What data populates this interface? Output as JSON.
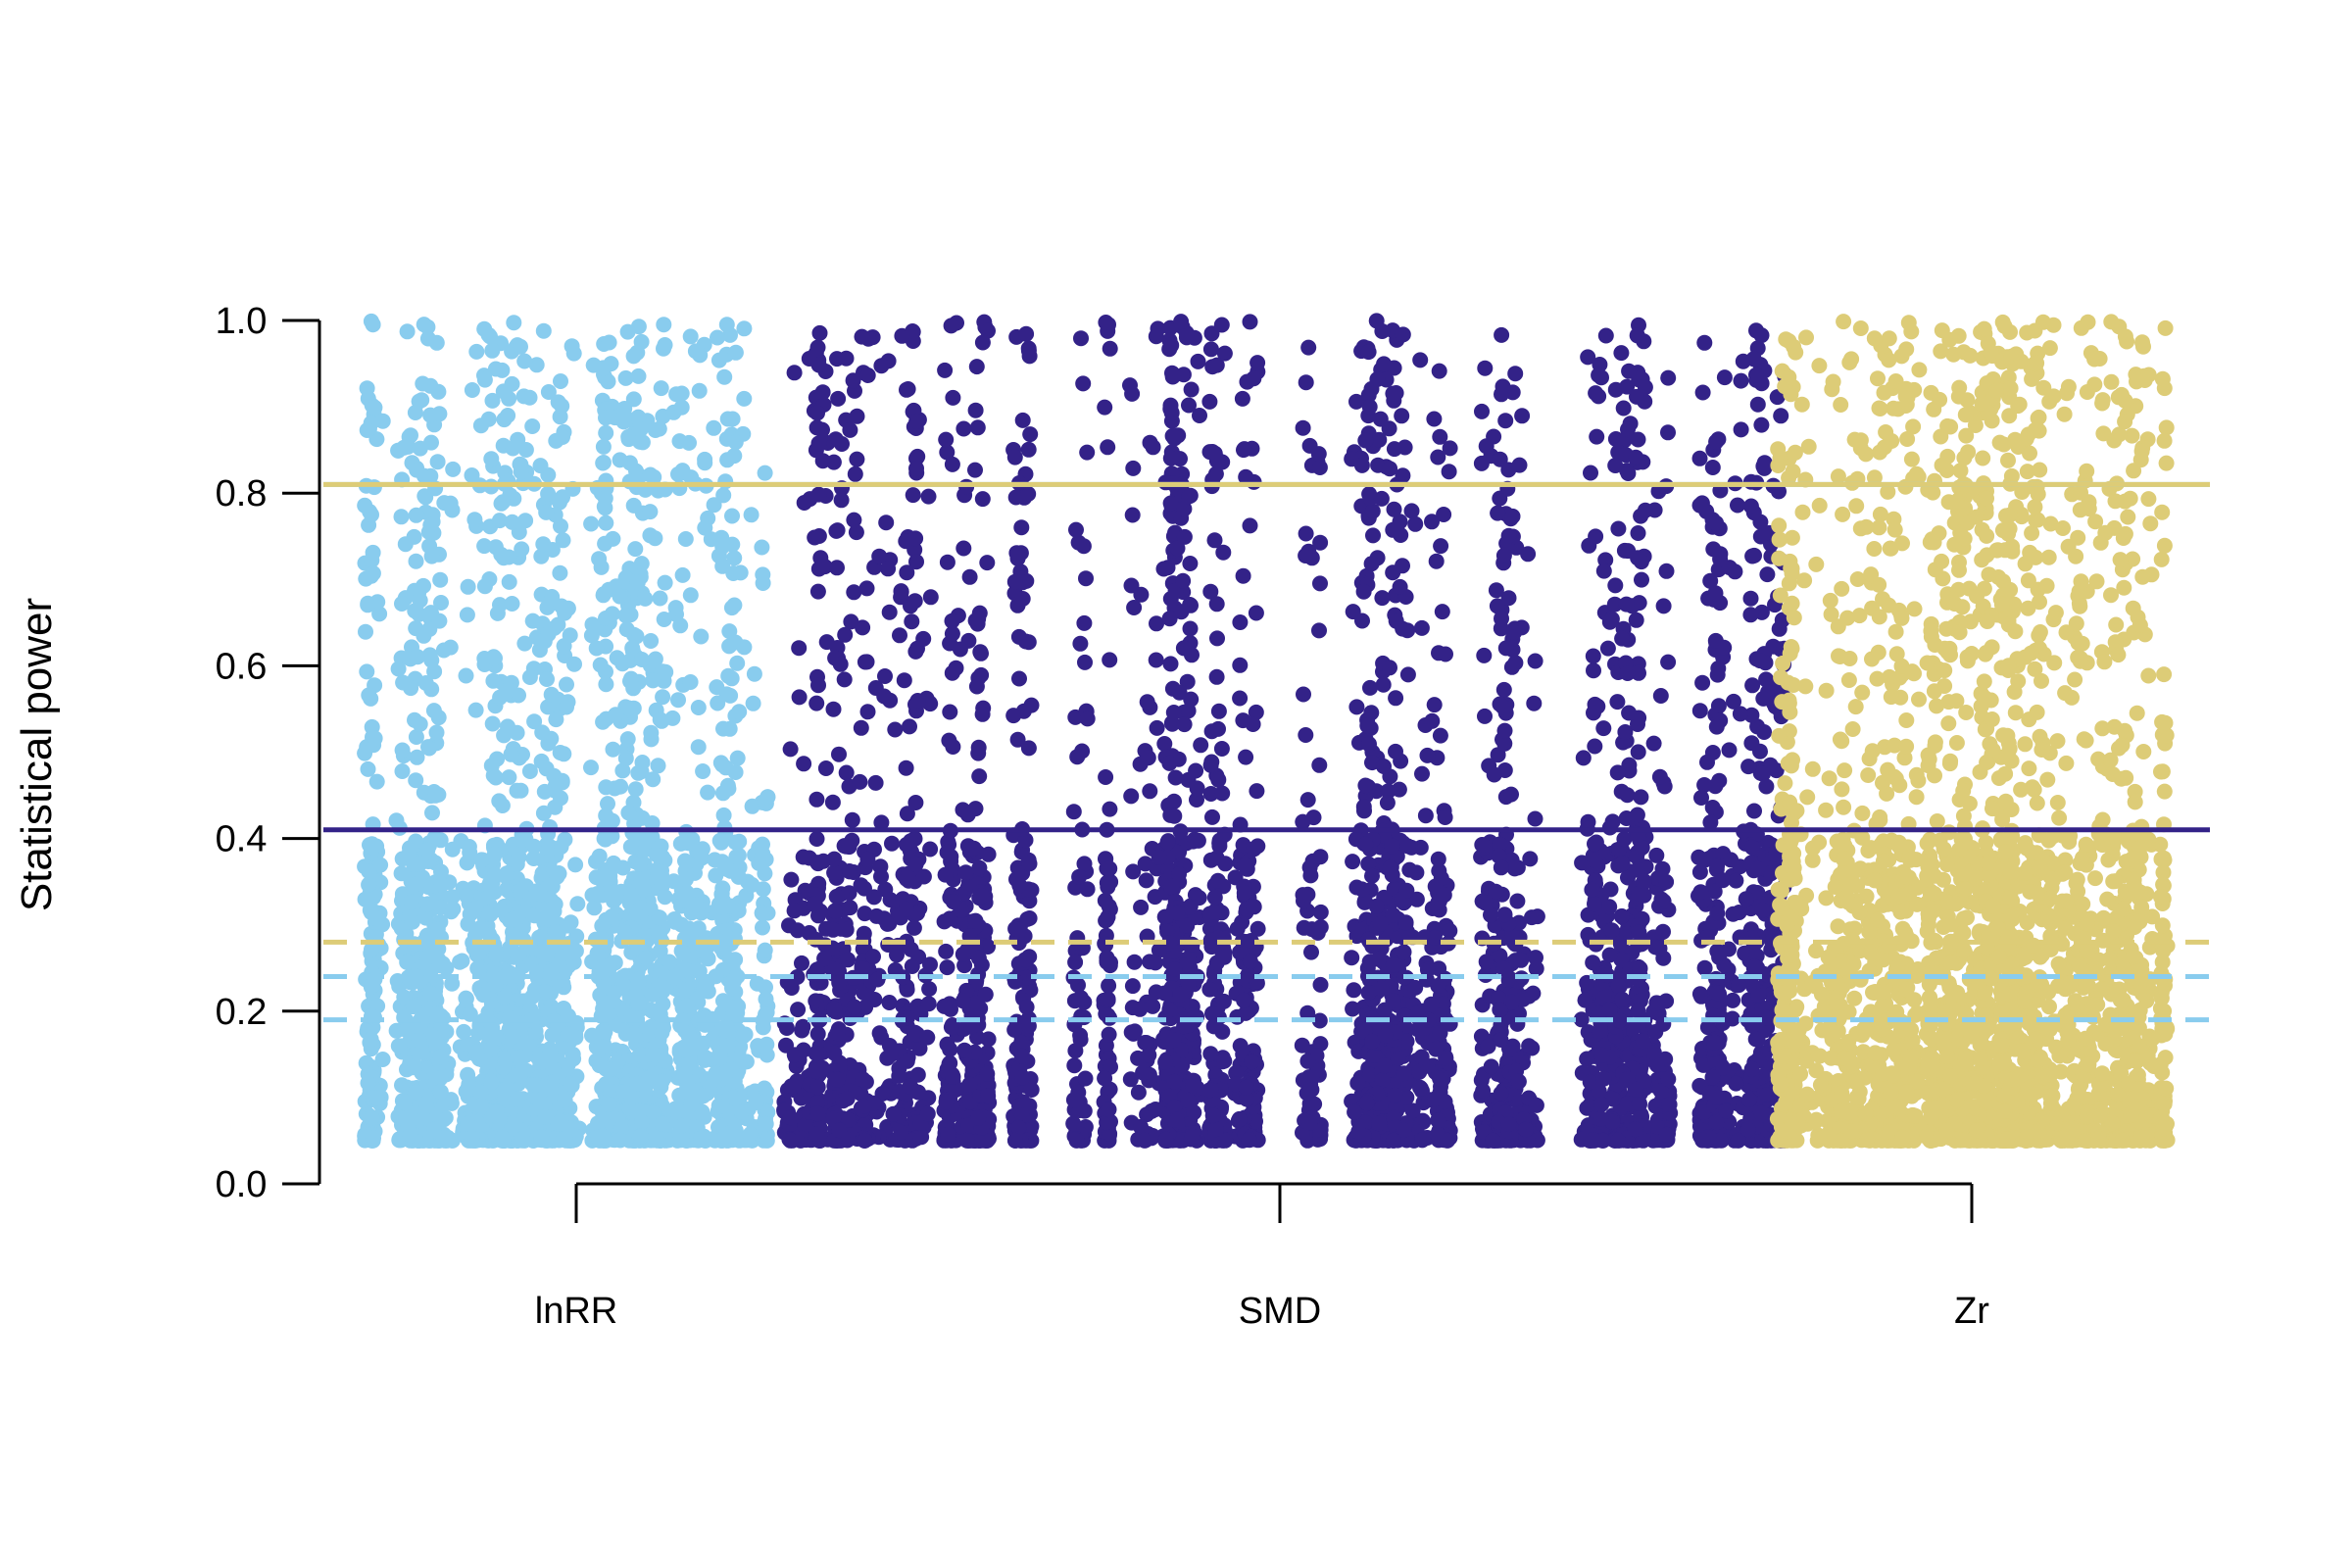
{
  "chart_data": {
    "type": "scatter",
    "title": "",
    "xlabel": "",
    "ylabel": "Statistical power",
    "ylim": [
      0,
      1
    ],
    "yticks": [
      "0.0",
      "0.2",
      "0.4",
      "0.6",
      "0.8",
      "1.0"
    ],
    "yticks_values": [
      0,
      0.2,
      0.4,
      0.6,
      0.8,
      1.0
    ],
    "categories": [
      "lnRR",
      "SMD",
      "Zr"
    ],
    "grid": false,
    "series": [
      {
        "category": "lnRR",
        "color": "#89CCEE",
        "x_range": [
          0.0,
          1.0
        ],
        "power_min": 0.05,
        "power_max": 1.0,
        "point_count_estimate": 3000
      },
      {
        "category": "SMD",
        "color": "#332288",
        "x_range": [
          0.0,
          1.0
        ],
        "power_min": 0.05,
        "power_max": 1.0,
        "point_count_estimate": 4000
      },
      {
        "category": "Zr",
        "color": "#DDCC77",
        "x_range": [
          0.0,
          1.0
        ],
        "power_min": 0.05,
        "power_max": 1.0,
        "point_count_estimate": 3000
      }
    ],
    "reference_lines": [
      {
        "series": "lnRR",
        "style": "solid",
        "value": 0.81,
        "color": "#89CCEE"
      },
      {
        "series": "Zr",
        "style": "solid",
        "value": 0.81,
        "color": "#DDCC77"
      },
      {
        "series": "SMD",
        "style": "solid",
        "value": 0.41,
        "color": "#332288"
      },
      {
        "series": "Zr",
        "style": "dashed",
        "value": 0.28,
        "color": "#DDCC77"
      },
      {
        "series": "lnRR",
        "style": "dashed",
        "value": 0.24,
        "color": "#89CCEE"
      },
      {
        "series": "lnRR",
        "style": "dashed",
        "value": 0.19,
        "color": "#89CCEE"
      }
    ]
  }
}
